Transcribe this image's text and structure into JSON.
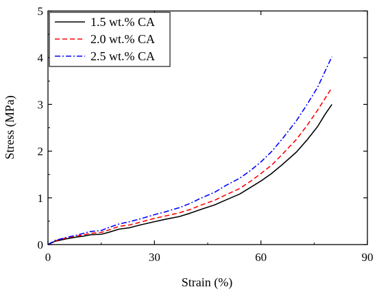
{
  "chart_data": {
    "type": "line",
    "title": "",
    "xlabel": "Strain (%)",
    "ylabel": "Stress (MPa)",
    "xlim": [
      0,
      90
    ],
    "ylim": [
      0,
      5
    ],
    "xticks": [
      0,
      30,
      60,
      90
    ],
    "yticks": [
      0,
      1,
      2,
      3,
      4,
      5
    ],
    "grid": false,
    "legend_position": "top-left",
    "series": [
      {
        "name": "1.5 wt.% CA",
        "color": "#000000",
        "dash": "solid",
        "x": [
          0,
          2,
          5,
          8,
          10,
          12,
          15,
          17,
          20,
          23,
          26,
          30,
          33,
          37,
          40,
          43,
          47,
          50,
          54,
          57,
          60,
          63,
          66,
          70,
          73,
          76,
          78,
          80
        ],
        "y": [
          0,
          0.07,
          0.12,
          0.16,
          0.18,
          0.21,
          0.22,
          0.26,
          0.33,
          0.36,
          0.42,
          0.49,
          0.54,
          0.6,
          0.67,
          0.75,
          0.85,
          0.95,
          1.08,
          1.22,
          1.36,
          1.52,
          1.71,
          1.98,
          2.24,
          2.53,
          2.78,
          3.0
        ]
      },
      {
        "name": "2.0 wt.% CA",
        "color": "#ff0000",
        "dash": "dashed",
        "x": [
          0,
          2,
          5,
          8,
          10,
          12,
          15,
          17,
          20,
          23,
          26,
          30,
          33,
          37,
          40,
          43,
          47,
          50,
          54,
          57,
          60,
          63,
          66,
          70,
          73,
          76,
          78,
          80
        ],
        "y": [
          0,
          0.08,
          0.14,
          0.18,
          0.21,
          0.24,
          0.26,
          0.31,
          0.39,
          0.42,
          0.48,
          0.56,
          0.61,
          0.68,
          0.75,
          0.84,
          0.95,
          1.06,
          1.2,
          1.35,
          1.52,
          1.7,
          1.93,
          2.25,
          2.55,
          2.88,
          3.12,
          3.36
        ]
      },
      {
        "name": "2.5 wt.% CA",
        "color": "#0000ff",
        "dash": "dashdot",
        "x": [
          0,
          2,
          5,
          8,
          10,
          12,
          15,
          17,
          20,
          23,
          26,
          30,
          33,
          37,
          40,
          43,
          47,
          50,
          54,
          57,
          60,
          63,
          66,
          70,
          73,
          76,
          78,
          80
        ],
        "y": [
          0,
          0.09,
          0.15,
          0.2,
          0.24,
          0.28,
          0.3,
          0.36,
          0.44,
          0.49,
          0.55,
          0.64,
          0.7,
          0.79,
          0.88,
          0.99,
          1.12,
          1.26,
          1.42,
          1.58,
          1.77,
          1.99,
          2.26,
          2.65,
          3.0,
          3.37,
          3.7,
          4.02
        ]
      }
    ]
  }
}
